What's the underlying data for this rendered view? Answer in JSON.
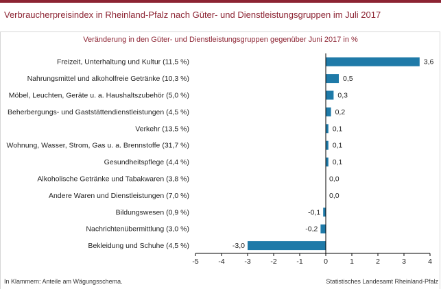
{
  "header": {
    "title": "Verbraucherpreisindex in Rheinland-Pfalz nach Güter- und Dienstleistungsgruppen im Juli 2017",
    "accent_color": "#8c2332"
  },
  "footer": {
    "note": "In Klammern: Anteile am Wägungsschema.",
    "source": "Statistisches Landesamt Rheinland-Pfalz"
  },
  "chart_data": {
    "type": "bar",
    "orientation": "horizontal",
    "title": "Veränderung in den Güter- und Dienstleistungsgruppen gegenüber Juni 2017 in %",
    "xlim": [
      -5,
      4
    ],
    "xticks": [
      "-5",
      "-4",
      "-3",
      "-2",
      "-1",
      "0",
      "1",
      "2",
      "3",
      "4"
    ],
    "grid": false,
    "bar_color": "#1f7aa8",
    "categories": [
      "Freizeit, Unterhaltung und Kultur (11,5 %)",
      "Nahrungsmittel und alkoholfreie Getränke (10,3 %)",
      "Möbel, Leuchten, Geräte u. a. Haushaltszubehör (5,0 %)",
      "Beherbergungs- und Gaststättendienstleistungen (4,5 %)",
      "Verkehr (13,5 %)",
      "Wohnung, Wasser, Strom, Gas u. a. Brennstoffe (31,7 %)",
      "Gesundheitspflege (4,4 %)",
      "Alkoholische Getränke und Tabakwaren (3,8 %)",
      "Andere Waren und Dienstleistungen (7,0 %)",
      "Bildungswesen (0,9 %)",
      "Nachrichtenübermittlung (3,0 %)",
      "Bekleidung und Schuhe (4,5 %)"
    ],
    "values": [
      3.6,
      0.5,
      0.3,
      0.2,
      0.1,
      0.1,
      0.1,
      0.0,
      0.0,
      -0.1,
      -0.2,
      -3.0
    ],
    "value_labels": [
      "3,6",
      "0,5",
      "0,3",
      "0,2",
      "0,1",
      "0,1",
      "0,1",
      "0,0",
      "0,0",
      "-0,1",
      "-0,2",
      "-3,0"
    ]
  }
}
